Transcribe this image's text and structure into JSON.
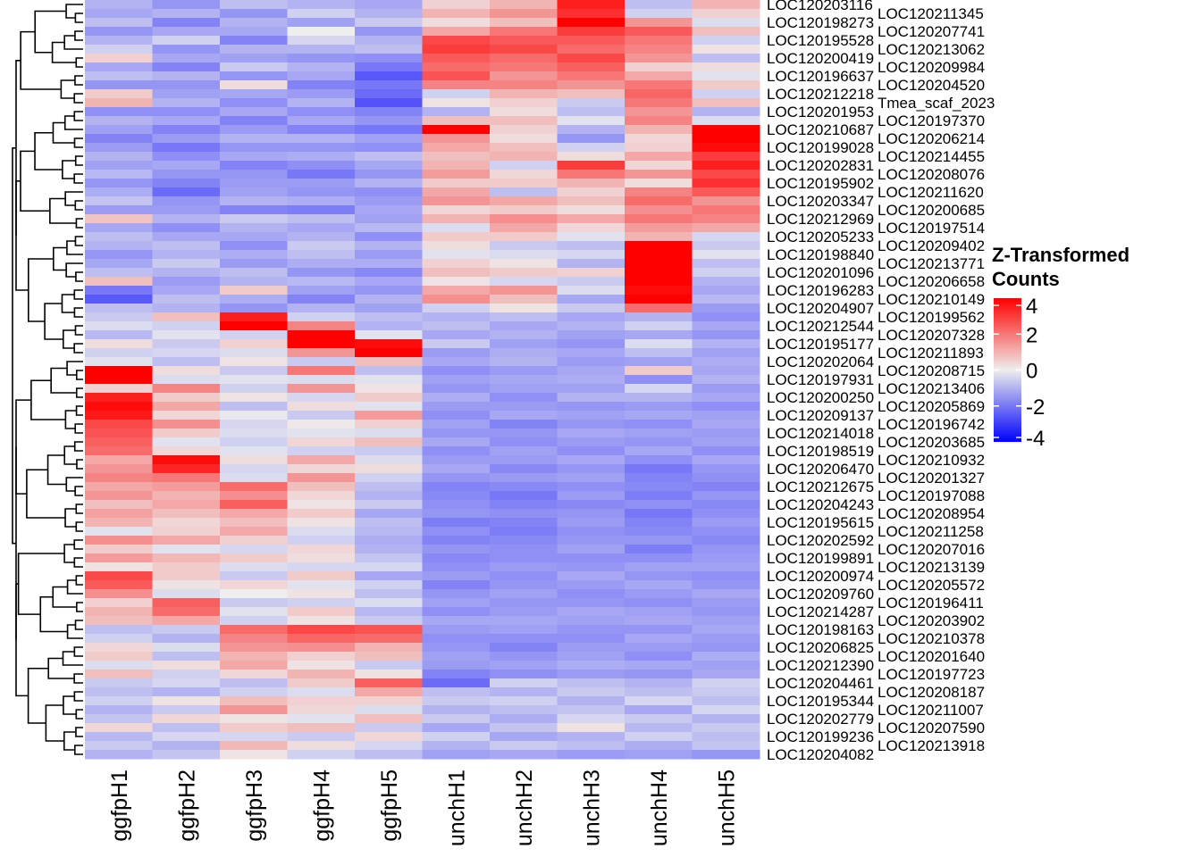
{
  "chart_data": {
    "type": "heatmap",
    "title": "",
    "columns": [
      "ggfpH1",
      "ggfpH2",
      "ggfpH3",
      "ggfpH4",
      "ggfpH5",
      "unchH1",
      "unchH2",
      "unchH3",
      "unchH4",
      "unchH5"
    ],
    "row_labels": [
      "LOC120203116",
      "LOC120211345",
      "LOC120198273",
      "LOC120207741",
      "LOC120195528",
      "LOC120213062",
      "LOC120200419",
      "LOC120209984",
      "LOC120196637",
      "LOC120204520",
      "LOC120212218",
      "Tmea_scaf_2023",
      "LOC120201953",
      "LOC120197370",
      "LOC120210687",
      "LOC120206214",
      "LOC120199028",
      "LOC120214455",
      "LOC120202831",
      "LOC120208076",
      "LOC120195902",
      "LOC120211620",
      "LOC120203347",
      "LOC120200685",
      "LOC120212969",
      "LOC120197514",
      "LOC120205233",
      "LOC120209402",
      "LOC120198840",
      "LOC120213771",
      "LOC120201096",
      "LOC120206658",
      "LOC120196283",
      "LOC120210149",
      "LOC120204907",
      "LOC120199562",
      "LOC120212544",
      "LOC120207328",
      "LOC120195177",
      "LOC120211893",
      "LOC120202064",
      "LOC120208715",
      "LOC120197931",
      "LOC120213406",
      "LOC120200250",
      "LOC120205869",
      "LOC120209137",
      "LOC120196742",
      "LOC120214018",
      "LOC120203685",
      "LOC120198519",
      "LOC120210932",
      "LOC120206470",
      "LOC120201327",
      "LOC120212675",
      "LOC120197088",
      "LOC120204243",
      "LOC120208954",
      "LOC120195615",
      "LOC120211258",
      "LOC120202592",
      "LOC120207016",
      "LOC120199891",
      "LOC120213139",
      "LOC120200974",
      "LOC120205572",
      "LOC120209760",
      "LOC120196411",
      "LOC120214287",
      "LOC120203902",
      "LOC120198163",
      "LOC120210378",
      "LOC120206825",
      "LOC120201640",
      "LOC120212390",
      "LOC120197723",
      "LOC120204461",
      "LOC120208187",
      "LOC120195344",
      "LOC120211007",
      "LOC120202779",
      "LOC120207590",
      "LOC120199236",
      "LOC120213918",
      "LOC120204082"
    ],
    "values": [
      [
        -1,
        -1.5,
        -0.8,
        -1,
        -1.2,
        0.5,
        1,
        3.5,
        -0.8,
        1
      ],
      [
        -1.2,
        -1,
        -1.5,
        -0.5,
        -1,
        1,
        1.5,
        3.2,
        -0.5,
        0.5
      ],
      [
        -0.8,
        -1.8,
        -1,
        -1.3,
        -0.6,
        0.3,
        0.8,
        4,
        1.5,
        -0.3
      ],
      [
        -1.5,
        -1.2,
        -1.2,
        0,
        -1.5,
        1.2,
        2,
        3,
        2.5,
        0.8
      ],
      [
        -1,
        -0.5,
        -1.8,
        -0.4,
        -1,
        2.8,
        2.5,
        2.5,
        2,
        -0.5
      ],
      [
        -0.5,
        -1.5,
        -1,
        -1,
        -0.8,
        3,
        2.8,
        2.2,
        1.8,
        0.2
      ],
      [
        0.5,
        -1.2,
        -1.3,
        -1.5,
        -1.6,
        2.5,
        2.2,
        2.8,
        1.5,
        -0.8
      ],
      [
        -1.2,
        -1.8,
        -0.6,
        -1,
        -2,
        2.2,
        2,
        2.4,
        0.5,
        0.3
      ],
      [
        -0.8,
        -1,
        -1.5,
        -1.2,
        -2.5,
        2.6,
        1.5,
        2,
        1.2,
        -0.2
      ],
      [
        -1.5,
        -1.5,
        0.3,
        -1.8,
        -2,
        1.8,
        1.8,
        1.5,
        2,
        0.6
      ],
      [
        0.6,
        -1.3,
        -1.2,
        -1.4,
        -2.2,
        -0.5,
        1,
        0.8,
        2.3,
        -0.5
      ],
      [
        1,
        -1,
        -1.6,
        -1,
        -2.6,
        0.2,
        0.5,
        -0.6,
        2,
        0.8
      ],
      [
        -1.6,
        -1.6,
        -1.2,
        -1.6,
        -1.8,
        -1,
        0.3,
        -0.8,
        1.5,
        -1
      ],
      [
        -1,
        -1.2,
        -1.8,
        -1.2,
        -1.5,
        0.8,
        0.8,
        -0.2,
        1.8,
        -0.3
      ],
      [
        -1.3,
        -1.8,
        -1.4,
        -1.8,
        -2,
        4,
        0.5,
        -1,
        1,
        4.2
      ],
      [
        -1.8,
        -1.4,
        -1,
        -1,
        -1.3,
        1.5,
        0.3,
        -1.5,
        0.4,
        4.5
      ],
      [
        -1.4,
        -2,
        -1.5,
        -1.5,
        -1.6,
        1.2,
        0.8,
        -0.5,
        0.5,
        3.8
      ],
      [
        -1,
        -1.6,
        -1.2,
        -1.1,
        -0.8,
        0.8,
        1,
        0.3,
        1.2,
        3
      ],
      [
        -1.3,
        -1.2,
        -1.8,
        -1.6,
        -1.2,
        1,
        -0.5,
        3,
        0.4,
        3.5
      ],
      [
        -0.9,
        -1.5,
        -1.5,
        -2,
        -1.5,
        1.4,
        0.4,
        2,
        1.5,
        2.8
      ],
      [
        -1.5,
        -1.8,
        -1.4,
        -1.4,
        -1,
        0.6,
        0.6,
        1,
        0.3,
        3.2
      ],
      [
        -1.1,
        -2.2,
        -1.3,
        -1.5,
        -1.6,
        1.2,
        -0.8,
        0.5,
        1.8,
        2.5
      ],
      [
        -0.7,
        -1.5,
        -1,
        -1.1,
        -1.4,
        1.5,
        1.2,
        0.8,
        2.2,
        1.5
      ],
      [
        -1.4,
        -1.4,
        -1.8,
        -1.9,
        -1.2,
        0.4,
        0.6,
        0.3,
        1.6,
        2
      ],
      [
        0.7,
        -1,
        -0.6,
        -0.8,
        -1.3,
        1,
        1.6,
        1.2,
        2,
        1.8
      ],
      [
        -1.2,
        -1.6,
        -1,
        -1.2,
        -0.9,
        -0.3,
        1.2,
        0.4,
        1.4,
        1.2
      ],
      [
        -0.8,
        -1.2,
        -1.2,
        -1,
        -1.6,
        0.6,
        0.6,
        -0.2,
        1,
        -0.4
      ],
      [
        -1,
        -0.8,
        -1.6,
        -0.6,
        -1,
        0.3,
        -0.6,
        -0.8,
        4.2,
        -0.6
      ],
      [
        -1.5,
        -1,
        -1.1,
        -0.8,
        -1.4,
        -0.2,
        -0.3,
        -0.4,
        4.3,
        -0.2
      ],
      [
        -1.2,
        -0.6,
        -1.4,
        -1.1,
        -1.1,
        0.5,
        0.2,
        -1,
        4.5,
        -0.8
      ],
      [
        -0.8,
        -1,
        -0.8,
        -1.5,
        -1.7,
        0.8,
        0.6,
        0.5,
        4.1,
        -0.5
      ],
      [
        0.8,
        -1.4,
        -1,
        -0.9,
        -1.2,
        0.2,
        -0.4,
        -0.6,
        4.4,
        -1
      ],
      [
        -2,
        -1.2,
        0.6,
        -1.3,
        -1.5,
        1.2,
        1.5,
        -0.3,
        3.8,
        -1.2
      ],
      [
        -2.5,
        -0.8,
        -1.1,
        -1.8,
        -1,
        1.6,
        0.8,
        -1.2,
        4.6,
        -0.9
      ],
      [
        -0.8,
        -1,
        -1.5,
        -1,
        -1.3,
        -0.5,
        0.2,
        -0.6,
        2.2,
        -1.4
      ],
      [
        -0.6,
        0.8,
        3.5,
        -0.5,
        -0.8,
        -1,
        -0.8,
        -1.2,
        -1,
        -1.6
      ],
      [
        -0.3,
        -0.5,
        4.2,
        1.8,
        -1,
        -0.8,
        -1.2,
        -1,
        -0.5,
        -1.2
      ],
      [
        -0.9,
        -0.2,
        -0.5,
        4.3,
        -0.2,
        -1.2,
        -1,
        -1.3,
        -1.2,
        -1.5
      ],
      [
        0.3,
        -0.6,
        0.5,
        4,
        3.8,
        -0.6,
        -1.3,
        -1.5,
        -0.3,
        -1
      ],
      [
        -0.5,
        -0.4,
        -0.3,
        1.5,
        4.2,
        -1.4,
        -1.1,
        -1.2,
        -0.8,
        -1.3
      ],
      [
        -0.2,
        -0.8,
        0.2,
        -0.6,
        0.8,
        -1.2,
        -1,
        -1.4,
        -1.3,
        -1.1
      ],
      [
        4.2,
        0.3,
        -0.6,
        2,
        -0.8,
        -1.6,
        -1.4,
        -1.2,
        0.6,
        -1.2
      ],
      [
        4.4,
        -0.3,
        -0.2,
        -0.3,
        -0.2,
        -1.3,
        -1.2,
        -1.1,
        -1.6,
        -1
      ],
      [
        0.5,
        1.8,
        -0.5,
        1.5,
        0.2,
        -1.5,
        -1.3,
        -1.3,
        -0.4,
        -1.4
      ],
      [
        3.5,
        0.6,
        0.2,
        -0.4,
        0.6,
        -1.1,
        -1.6,
        -1,
        -1,
        -1.2
      ],
      [
        3.8,
        1.2,
        -0.8,
        0.3,
        -0.2,
        -1.4,
        -1.4,
        -1.5,
        -1.4,
        -1.6
      ],
      [
        3.6,
        0.4,
        -0.1,
        -0.6,
        1.4,
        -1.6,
        -1.2,
        -1.3,
        -1.2,
        -1.3
      ],
      [
        2.8,
        1.6,
        -0.4,
        0.1,
        0.5,
        -1.3,
        -1.8,
        -1.5,
        -1.6,
        -1.2
      ],
      [
        2.6,
        0.6,
        -0.3,
        -0.2,
        -0.3,
        -1.5,
        -1.5,
        -1.2,
        -1.3,
        -1.4
      ],
      [
        2.4,
        -0.2,
        -0.5,
        0.4,
        0.8,
        -1.2,
        -1.6,
        -1.4,
        -1.5,
        -1.3
      ],
      [
        2.2,
        0.4,
        -0.2,
        -0.5,
        -0.6,
        -1.6,
        -1.3,
        -1.6,
        -1.2,
        -1.6
      ],
      [
        1.2,
        3.8,
        0.3,
        1.2,
        -0.3,
        -1.4,
        -1.4,
        -1.2,
        -1.6,
        -1.2
      ],
      [
        1.5,
        3.4,
        -0.4,
        0.4,
        0.3,
        -1.2,
        -1.7,
        -1.5,
        -2,
        -1.5
      ],
      [
        1.8,
        2,
        -0.3,
        1.5,
        -0.5,
        -1.5,
        -1.4,
        -1.3,
        -1.8,
        -1.6
      ],
      [
        1.2,
        1.4,
        2.2,
        0.8,
        -0.8,
        -1.8,
        -1.7,
        -1.6,
        -1.7,
        -1.8
      ],
      [
        1.5,
        1,
        1.6,
        0.4,
        -1,
        -1.7,
        -2,
        -1.4,
        -1.9,
        -1.5
      ],
      [
        0.8,
        1.2,
        2.4,
        0.2,
        -0.6,
        -1.6,
        -1.8,
        -1.7,
        -1.6,
        -1.7
      ],
      [
        1.3,
        0.8,
        1.2,
        0.6,
        -1.2,
        -1.5,
        -1.6,
        -1.5,
        -2,
        -1.6
      ],
      [
        1,
        0.4,
        0.8,
        0.2,
        -0.8,
        -1.9,
        -1.8,
        -1.4,
        -1.8,
        -1.4
      ],
      [
        -0.2,
        0.5,
        1.2,
        -0.3,
        -0.9,
        -1.6,
        -1.9,
        -1.6,
        -1.7,
        -1.6
      ],
      [
        1.6,
        1.2,
        0.5,
        -0.5,
        -1.1,
        -1.8,
        -1.7,
        -1.5,
        -1.5,
        -1.7
      ],
      [
        0.6,
        -0.2,
        -0.4,
        0.4,
        -1,
        -1.5,
        -1.6,
        -1.3,
        -1.9,
        -1.5
      ],
      [
        1.4,
        0.9,
        0.6,
        0.3,
        -0.7,
        -1.7,
        -1.6,
        -1.6,
        -1.6,
        -1.4
      ],
      [
        0.2,
        0.6,
        -0.3,
        -0.4,
        -0.4,
        -1.6,
        -1.4,
        -1.5,
        -1.3,
        -1.3
      ],
      [
        2.8,
        0.6,
        -0.6,
        0.6,
        -1.2,
        -1.4,
        -1.6,
        -1.2,
        -1.5,
        -1.6
      ],
      [
        2.5,
        0.2,
        0.4,
        -0.2,
        -0.5,
        -1.8,
        -1.5,
        -1.4,
        -1.2,
        -1.5
      ],
      [
        1.6,
        -0.3,
        0,
        0.2,
        -0.8,
        -1.5,
        -1.3,
        -1.6,
        -1.4,
        -1.2
      ],
      [
        0.5,
        2.4,
        -0.6,
        -0.5,
        -0.3,
        -1.3,
        -1.5,
        -1.5,
        -1.6,
        -1.4
      ],
      [
        1,
        2.2,
        -0.2,
        0.6,
        -0.9,
        -1.6,
        -1.4,
        -1.2,
        -1.3,
        -1.5
      ],
      [
        0.8,
        1.2,
        -0.5,
        0.2,
        -0.6,
        -1.2,
        -1.2,
        -1.3,
        -1.2,
        -1.3
      ],
      [
        -0.8,
        -0.6,
        2.2,
        2.8,
        2.6,
        -1.4,
        -1.3,
        -1.5,
        -1.5,
        -1.2
      ],
      [
        -0.5,
        -1,
        1.8,
        2.3,
        2.2,
        -1.6,
        -1.6,
        -1.6,
        -1.2,
        -1.4
      ],
      [
        0.4,
        -0.3,
        1.5,
        1.6,
        1,
        -1.5,
        -1.8,
        -1.4,
        -1.4,
        -1.5
      ],
      [
        0.6,
        -0.8,
        1,
        0.5,
        0.8,
        -1.3,
        -1.5,
        -1.3,
        -1.6,
        -1.1
      ],
      [
        -0.3,
        0.3,
        1.2,
        0.2,
        -0.6,
        -1.4,
        -1.3,
        -1.1,
        -1.2,
        -1.3
      ],
      [
        0.8,
        -0.5,
        0.4,
        1,
        0.2,
        -1.8,
        -1.6,
        -1.4,
        -1.5,
        -1.2
      ],
      [
        -0.6,
        -0.4,
        -0.8,
        0.6,
        2.4,
        -2.2,
        -0.5,
        -0.8,
        -1,
        -0.5
      ],
      [
        -0.8,
        -1,
        -0.5,
        -0.3,
        1.2,
        -0.8,
        -1,
        -0.6,
        -0.8,
        -0.6
      ],
      [
        -0.5,
        0.2,
        0.8,
        0.5,
        0.5,
        -0.6,
        -0.5,
        -1,
        -0.4,
        -0.8
      ],
      [
        -1,
        -0.6,
        1.5,
        0.4,
        -0.3,
        -1,
        -0.8,
        -0.7,
        -1.2,
        -0.4
      ],
      [
        -0.7,
        0.4,
        0.2,
        -0.2,
        0.8,
        -0.6,
        -1.1,
        -0.4,
        -0.6,
        -1
      ],
      [
        0.4,
        -0.8,
        0.6,
        0.8,
        -0.6,
        -1.2,
        -0.7,
        0.2,
        -0.9,
        -0.6
      ],
      [
        -0.9,
        -0.4,
        -0.4,
        -0.6,
        0.4,
        -0.5,
        -1.2,
        -1,
        -0.5,
        -0.8
      ],
      [
        -0.6,
        -1,
        0.9,
        0.3,
        -0.4,
        -1,
        -0.6,
        -0.8,
        -1.1,
        -0.7
      ],
      [
        -1,
        -0.7,
        0.2,
        -0.5,
        -0.8,
        -1.3,
        -1.2,
        -1.4,
        -1.3,
        -1.5
      ]
    ],
    "legend": {
      "title": "Z-Transformed Counts",
      "ticks": [
        4,
        2,
        0,
        -2,
        -4
      ],
      "range": [
        -4,
        4
      ],
      "placement": "right"
    },
    "colors": {
      "low": "#0000FF",
      "mid": "#EEEEEE",
      "high": "#FF0000"
    },
    "row_dendrogram": true
  }
}
